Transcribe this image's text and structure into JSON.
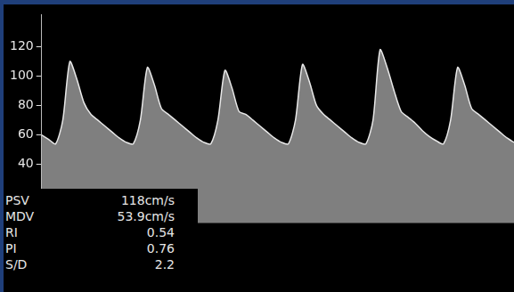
{
  "chart_data": {
    "type": "line",
    "categories": [
      null,
      null,
      null,
      null,
      null,
      null,
      null,
      null,
      null,
      null,
      null,
      null,
      null,
      null,
      null,
      null,
      null,
      null,
      null,
      null,
      null,
      null,
      null,
      null,
      null,
      null,
      null,
      null,
      null,
      null,
      null,
      null,
      null,
      null,
      null,
      null,
      null,
      null,
      null,
      null,
      null,
      null,
      null,
      null,
      null,
      null,
      null,
      null,
      null,
      null,
      null,
      null,
      null,
      null,
      null,
      null,
      null,
      null,
      null,
      null,
      null,
      null,
      null,
      null,
      null,
      null,
      null,
      null
    ],
    "values": [
      60,
      57,
      54,
      70,
      110,
      98,
      82,
      74,
      70,
      66,
      62,
      58,
      55,
      54,
      70,
      106,
      94,
      78,
      74,
      70,
      66,
      62,
      58,
      55,
      54,
      70,
      104,
      92,
      76,
      74,
      70,
      66,
      62,
      58,
      55,
      54,
      70,
      108,
      96,
      80,
      74,
      70,
      66,
      62,
      58,
      55,
      54,
      70,
      118,
      106,
      90,
      76,
      72,
      68,
      63,
      59,
      56,
      54,
      70,
      106,
      94,
      78,
      74,
      70,
      66,
      62,
      58,
      55
    ],
    "color": "#e8e8e8",
    "ylim": [
      -40,
      142
    ],
    "yticks": [
      40,
      60,
      80,
      100,
      120
    ],
    "grid": false,
    "tick_labels": "y",
    "measurements": [
      {
        "label": "PSV",
        "value": "118cm/s"
      },
      {
        "label": "MDV",
        "value": "53.9cm/s"
      },
      {
        "label": "RI",
        "value": "0.54"
      },
      {
        "label": "PI",
        "value": "0.76"
      },
      {
        "label": "S/D",
        "value": "2.2"
      }
    ]
  }
}
